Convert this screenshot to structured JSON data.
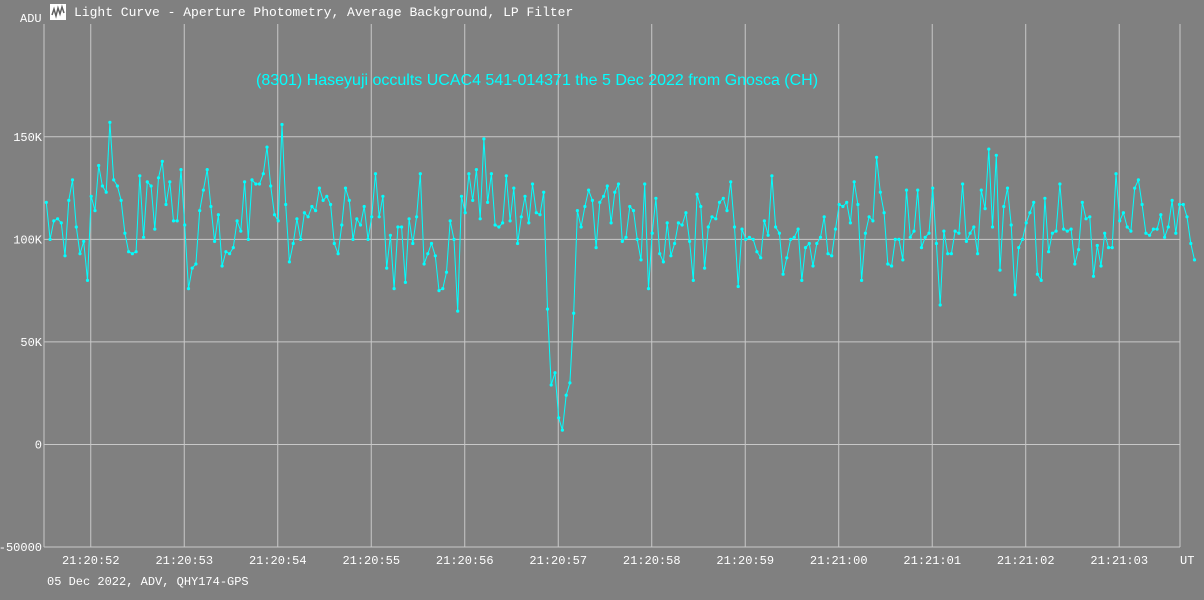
{
  "window": {
    "title": "Light Curve - Aperture Photometry, Average Background, LP Filter",
    "icon": "light-curve-app-icon"
  },
  "footer": {
    "text": "05 Dec 2022, ADV, QHY174-GPS"
  },
  "colors": {
    "background": "#808080",
    "grid": "#c8c8c8",
    "series": "#00ffff",
    "text": "#ffffff"
  },
  "chart_data": {
    "type": "line",
    "title": "(8301) Haseyuji occults UCAC4 541-014371 the 5 Dec 2022 from Gnosca (CH)",
    "ylabel": "ADU",
    "xlabel": "UT",
    "ylim": [
      -50000,
      205000
    ],
    "xlim": [
      51.5,
      63.65
    ],
    "grid": true,
    "y_ticks": [
      {
        "value": -50000,
        "label": "-50000"
      },
      {
        "value": 0,
        "label": "0"
      },
      {
        "value": 50000,
        "label": "50K"
      },
      {
        "value": 100000,
        "label": "100K"
      },
      {
        "value": 150000,
        "label": "150K"
      }
    ],
    "x_ticks": [
      {
        "value": 52,
        "label": "21:20:52"
      },
      {
        "value": 53,
        "label": "21:20:53"
      },
      {
        "value": 54,
        "label": "21:20:54"
      },
      {
        "value": 55,
        "label": "21:20:55"
      },
      {
        "value": 56,
        "label": "21:20:56"
      },
      {
        "value": 57,
        "label": "21:20:57"
      },
      {
        "value": 58,
        "label": "21:20:58"
      },
      {
        "value": 59,
        "label": "21:20:59"
      },
      {
        "value": 60,
        "label": "21:21:00"
      },
      {
        "value": 61,
        "label": "21:21:01"
      },
      {
        "value": 62,
        "label": "21:21:02"
      },
      {
        "value": 63,
        "label": "21:21:03"
      }
    ],
    "series": [
      {
        "x_start": 51.525,
        "x_step": 0.04,
        "values": [
          118000,
          100000,
          109000,
          110000,
          108000,
          92000,
          119000,
          129000,
          106000,
          93000,
          99000,
          80000,
          121000,
          114000,
          136000,
          126000,
          123000,
          157000,
          129000,
          126000,
          119000,
          103000,
          94000,
          93000,
          94000,
          131000,
          101000,
          128000,
          126000,
          105000,
          130000,
          138000,
          117000,
          128000,
          109000,
          109000,
          134000,
          107000,
          76000,
          86000,
          88000,
          114000,
          124000,
          134000,
          116000,
          99000,
          112000,
          87000,
          94000,
          93000,
          96000,
          109000,
          104000,
          128000,
          100000,
          129000,
          127000,
          127000,
          132000,
          145000,
          126000,
          112000,
          109000,
          156000,
          117000,
          89000,
          98000,
          110000,
          100000,
          113000,
          111000,
          116000,
          114000,
          125000,
          119000,
          121000,
          117000,
          98000,
          93000,
          107000,
          125000,
          119000,
          100000,
          110000,
          107000,
          116000,
          100000,
          111000,
          132000,
          111000,
          121000,
          86000,
          102000,
          76000,
          106000,
          106000,
          79000,
          110000,
          98000,
          111000,
          132000,
          88000,
          93000,
          98000,
          92000,
          75000,
          76000,
          84000,
          109000,
          100000,
          65000,
          121000,
          113000,
          132000,
          119000,
          134000,
          110000,
          149000,
          118000,
          132000,
          107000,
          106000,
          108000,
          131000,
          109000,
          125000,
          98000,
          111000,
          121000,
          108000,
          127000,
          113000,
          112000,
          123000,
          66000,
          29000,
          35000,
          13000,
          7000,
          24000,
          30000,
          64000,
          114000,
          106000,
          116000,
          124000,
          119000,
          96000,
          118000,
          121000,
          126000,
          108000,
          123000,
          127000,
          99000,
          101000,
          116000,
          114000,
          100000,
          90000,
          127000,
          76000,
          103000,
          120000,
          93000,
          89000,
          108000,
          92000,
          98000,
          108000,
          107000,
          113000,
          99000,
          80000,
          122000,
          116000,
          86000,
          106000,
          111000,
          110000,
          118000,
          120000,
          114000,
          128000,
          106000,
          77000,
          105000,
          100000,
          101000,
          100000,
          94000,
          91000,
          109000,
          102000,
          131000,
          106000,
          103000,
          83000,
          91000,
          100000,
          101000,
          105000,
          80000,
          96000,
          98000,
          87000,
          98000,
          101000,
          111000,
          93000,
          92000,
          105000,
          117000,
          116000,
          118000,
          108000,
          128000,
          117000,
          80000,
          103000,
          111000,
          109000,
          140000,
          123000,
          113000,
          88000,
          87000,
          100000,
          100000,
          90000,
          124000,
          101000,
          104000,
          124000,
          96000,
          101000,
          103000,
          125000,
          98000,
          68000,
          104000,
          93000,
          93000,
          104000,
          103000,
          127000,
          99000,
          103000,
          106000,
          93000,
          124000,
          115000,
          144000,
          106000,
          141000,
          85000,
          116000,
          125000,
          107000,
          73000,
          96000,
          100000,
          108000,
          113000,
          118000,
          83000,
          80000,
          120000,
          94000,
          103000,
          104000,
          127000,
          105000,
          104000,
          105000,
          88000,
          95000,
          118000,
          110000,
          111000,
          82000,
          97000,
          87000,
          103000,
          96000,
          96000,
          132000,
          109000,
          113000,
          106000,
          104000,
          125000,
          129000,
          117000,
          103000,
          102000,
          105000,
          105000,
          112000,
          101000,
          106000,
          119000,
          103000,
          117000,
          117000,
          111000,
          98000,
          90000
        ]
      }
    ]
  }
}
